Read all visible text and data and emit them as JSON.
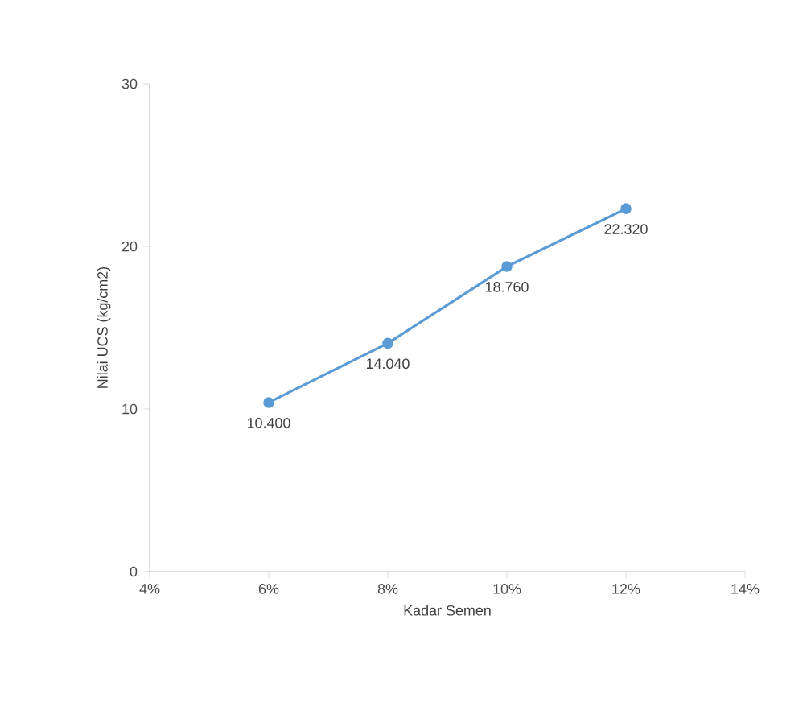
{
  "chart_data": {
    "type": "line",
    "xlabel": "Kadar Semen",
    "ylabel": "Nilai UCS (kg/cm2)",
    "x": [
      6,
      8,
      10,
      12
    ],
    "series": [
      {
        "color": "#5b9bd5",
        "values": [
          10.4,
          14.04,
          18.76,
          22.32
        ],
        "value_labels": [
          "10.400",
          "14.040",
          "18.760",
          "22.320"
        ]
      }
    ],
    "xlim": [
      4,
      14
    ],
    "xticks": [
      {
        "value": 4,
        "label": "4%"
      },
      {
        "value": 6,
        "label": "6%"
      },
      {
        "value": 8,
        "label": "8%"
      },
      {
        "value": 10,
        "label": "10%"
      },
      {
        "value": 12,
        "label": "12%"
      },
      {
        "value": 14,
        "label": "14%"
      }
    ],
    "ylim": [
      0,
      30
    ],
    "yticks": [
      0,
      10,
      20,
      30
    ],
    "grid": false,
    "marker": "circle",
    "line_style": "solid"
  }
}
